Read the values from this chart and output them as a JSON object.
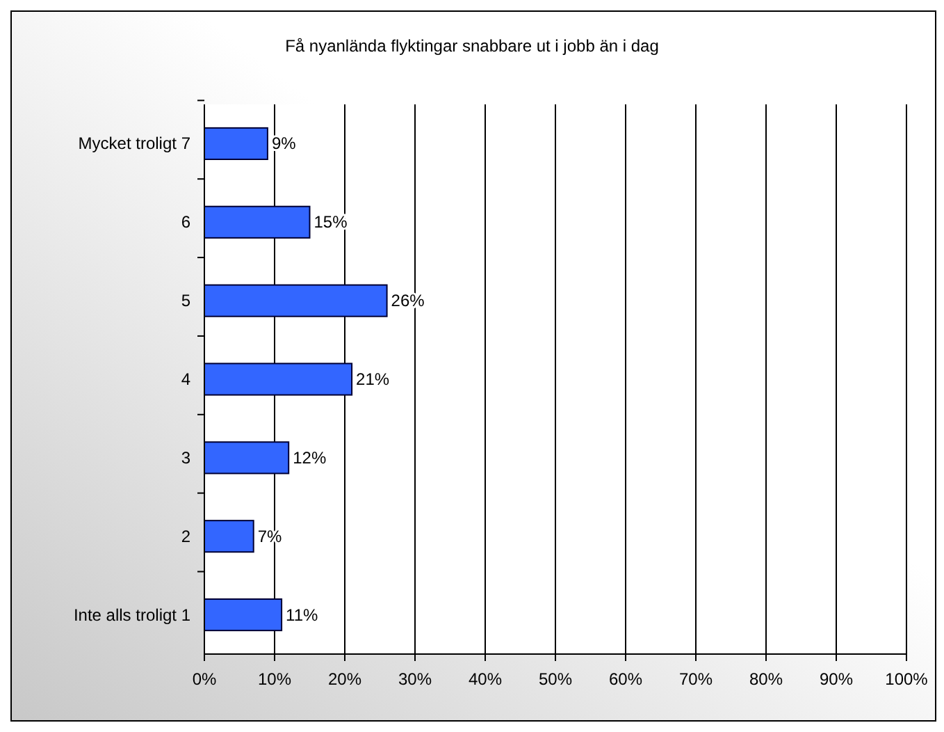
{
  "chart_data": {
    "type": "bar",
    "orientation": "horizontal",
    "title": "Få nyanlända flyktingar snabbare ut i jobb än i dag",
    "categories": [
      "Mycket troligt 7",
      "6",
      "5",
      "4",
      "3",
      "2",
      "Inte alls troligt 1"
    ],
    "values": [
      9,
      15,
      26,
      21,
      12,
      7,
      11
    ],
    "value_labels": [
      "9%",
      "15%",
      "26%",
      "21%",
      "12%",
      "7%",
      "11%"
    ],
    "color": "#3366ff",
    "xlim": [
      0,
      100
    ],
    "xticks": [
      {
        "value": 0,
        "label": "0%"
      },
      {
        "value": 10,
        "label": "10%"
      },
      {
        "value": 20,
        "label": "20%"
      },
      {
        "value": 30,
        "label": "30%"
      },
      {
        "value": 40,
        "label": "40%"
      },
      {
        "value": 50,
        "label": "50%"
      },
      {
        "value": 60,
        "label": "60%"
      },
      {
        "value": 70,
        "label": "70%"
      },
      {
        "value": 80,
        "label": "80%"
      },
      {
        "value": 90,
        "label": "90%"
      },
      {
        "value": 100,
        "label": "100%"
      }
    ],
    "grid": "x"
  }
}
